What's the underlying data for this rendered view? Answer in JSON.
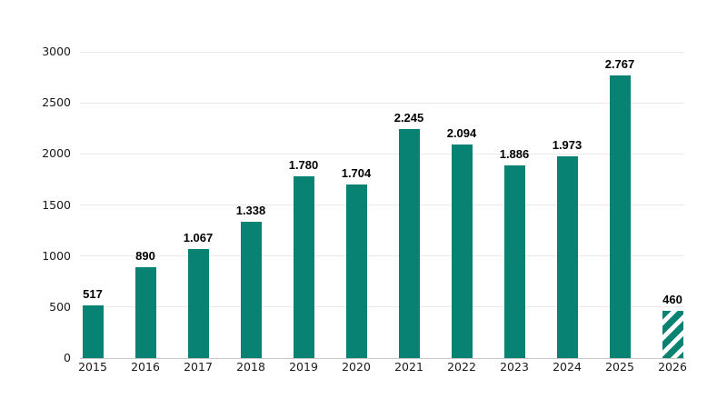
{
  "chart_data": {
    "type": "bar",
    "title": "",
    "categories": [
      "2015",
      "2016",
      "2017",
      "2018",
      "2019",
      "2020",
      "2021",
      "2022",
      "2023",
      "2024",
      "2025",
      "2026"
    ],
    "values": [
      517,
      890,
      1067,
      1338,
      1780,
      1704,
      2245,
      2094,
      1886,
      1973,
      2767,
      460
    ],
    "value_labels": [
      "517",
      "890",
      "1.067",
      "1.338",
      "1.780",
      "1.704",
      "2.245",
      "2.094",
      "1.886",
      "1.973",
      "2.767",
      "460"
    ],
    "hatched_categories": [
      "2026"
    ],
    "xlabel": "",
    "ylabel": "",
    "ylim": [
      0,
      3000
    ],
    "yticks": [
      0,
      500,
      1000,
      1500,
      2000,
      2500,
      3000
    ],
    "grid": "horizontal",
    "legend_position": "none"
  },
  "styles": {
    "bar_color": "#088273",
    "hatch_stripe_color": "#088273",
    "hatch_gap_color": "#ffffff",
    "grid_color": "#e9e9e9",
    "baseline_color": "#c9c9c9",
    "tick_label_color": "#1a1a1a",
    "value_label_color": "#000000",
    "background_color": "#ffffff"
  }
}
